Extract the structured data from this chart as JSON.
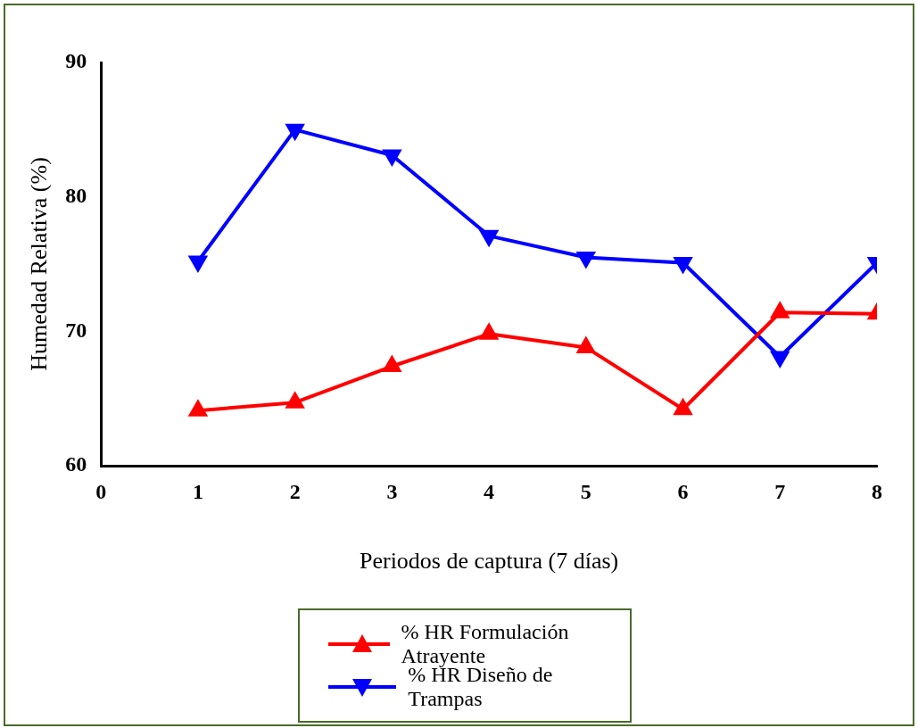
{
  "chart_data": {
    "type": "line",
    "xlabel": "Periodos de captura (7 días)",
    "ylabel": "Humedad Relativa (%)",
    "x": [
      1,
      2,
      3,
      4,
      5,
      6,
      7,
      8
    ],
    "series": [
      {
        "name": "% HR Formulación Atrayente",
        "color": "#ff0000",
        "marker": "triangle",
        "values": [
          64.1,
          64.7,
          67.4,
          69.8,
          68.8,
          64.2,
          71.4,
          71.3
        ]
      },
      {
        "name": "% HR Diseño de Trampas",
        "color": "#0000ff",
        "marker": "triangle-down",
        "values": [
          75.2,
          85.0,
          83.1,
          77.1,
          75.5,
          75.1,
          68.1,
          75.1
        ]
      }
    ],
    "xlim": [
      0,
      8
    ],
    "xticks": [
      0,
      1,
      2,
      3,
      4,
      5,
      6,
      7,
      8
    ],
    "ylim": [
      60,
      90
    ],
    "yticks": [
      60,
      70,
      80,
      90
    ],
    "grid": false,
    "legend": "bottom",
    "line_style": "solid"
  }
}
